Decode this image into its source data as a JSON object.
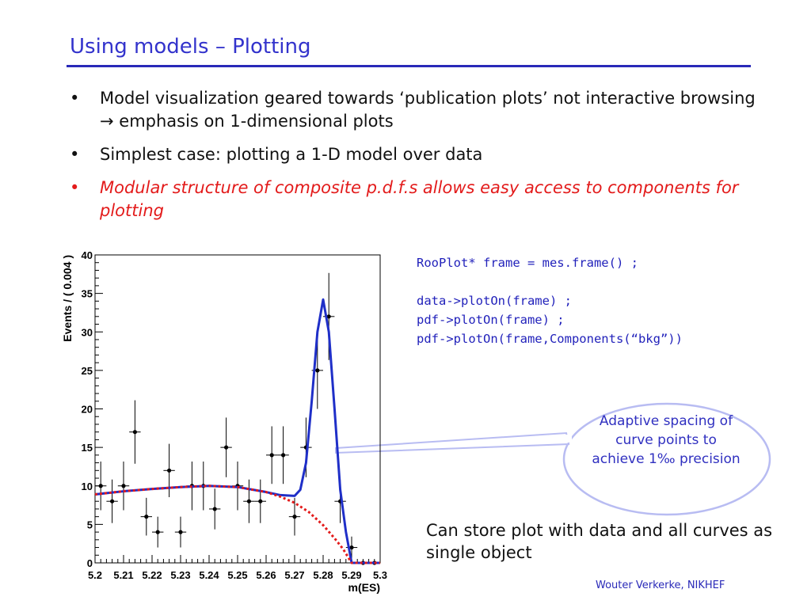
{
  "title": "Using models – Plotting",
  "bullets": [
    {
      "text": "Model visualization geared towards ‘publication plots’ not interactive browsing → emphasis on 1-dimensional plots",
      "emphasis": false
    },
    {
      "text": "Simplest case: plotting a 1-D model over data",
      "emphasis": false
    },
    {
      "text": "Modular structure of composite p.d.f.s allows easy access to components for plotting",
      "emphasis": true
    }
  ],
  "bullet_glyph": "•",
  "code_lines": [
    "RooPlot* frame = mes.frame() ;",
    "",
    "data->plotOn(frame) ;",
    "pdf->plotOn(frame) ;",
    "pdf->plotOn(frame,Components(“bkg”))"
  ],
  "callout": "Adaptive spacing of curve points to achieve 1‰ precision",
  "note": "Can store plot with data and all curves as single object",
  "footer": "Wouter Verkerke, NIKHEF",
  "colors": {
    "title": "#3333cc",
    "emphasis": "#e31b1b",
    "code": "#2222bb",
    "total_curve": "#1f2fc8",
    "bkg_curve": "#e31b1b",
    "callout_border": "#b8bcf2"
  },
  "chart_data": {
    "type": "scatter",
    "xlabel": "m(ES)",
    "ylabel": "Events / ( 0.004 )",
    "xlim": [
      5.2,
      5.3
    ],
    "ylim": [
      0,
      40
    ],
    "x_ticks": [
      "5.2",
      "5.21",
      "5.22",
      "5.23",
      "5.24",
      "5.25",
      "5.26",
      "5.27",
      "5.28",
      "5.29",
      "5.3"
    ],
    "y_ticks": [
      "0",
      "5",
      "10",
      "15",
      "20",
      "25",
      "30",
      "35",
      "40"
    ],
    "grid": false,
    "data": {
      "x": [
        5.202,
        5.206,
        5.21,
        5.214,
        5.218,
        5.222,
        5.226,
        5.23,
        5.234,
        5.238,
        5.242,
        5.246,
        5.25,
        5.254,
        5.258,
        5.262,
        5.266,
        5.27,
        5.274,
        5.278,
        5.282,
        5.286,
        5.29,
        5.294,
        5.298
      ],
      "y": [
        10,
        8,
        10,
        17,
        6,
        4,
        12,
        4,
        10,
        10,
        7,
        15,
        10,
        8,
        8,
        14,
        14,
        6,
        15,
        25,
        32,
        8,
        2,
        0,
        0
      ]
    },
    "series": [
      {
        "name": "pdf",
        "x": [
          5.2,
          5.21,
          5.22,
          5.23,
          5.24,
          5.25,
          5.26,
          5.265,
          5.27,
          5.272,
          5.274,
          5.276,
          5.278,
          5.28,
          5.282,
          5.284,
          5.286,
          5.288,
          5.29,
          5.3
        ],
        "y": [
          8.9,
          9.3,
          9.6,
          9.85,
          10.0,
          9.85,
          9.2,
          8.8,
          8.7,
          9.5,
          13,
          21,
          30,
          34.2,
          30,
          20,
          9.5,
          4,
          0,
          0
        ]
      },
      {
        "name": "bkg",
        "x": [
          5.2,
          5.21,
          5.22,
          5.23,
          5.24,
          5.25,
          5.26,
          5.265,
          5.27,
          5.275,
          5.28,
          5.284,
          5.287,
          5.29,
          5.3
        ],
        "y": [
          8.9,
          9.3,
          9.6,
          9.85,
          10.0,
          9.85,
          9.2,
          8.6,
          7.8,
          6.6,
          4.9,
          3.2,
          1.8,
          0,
          0
        ]
      }
    ]
  }
}
